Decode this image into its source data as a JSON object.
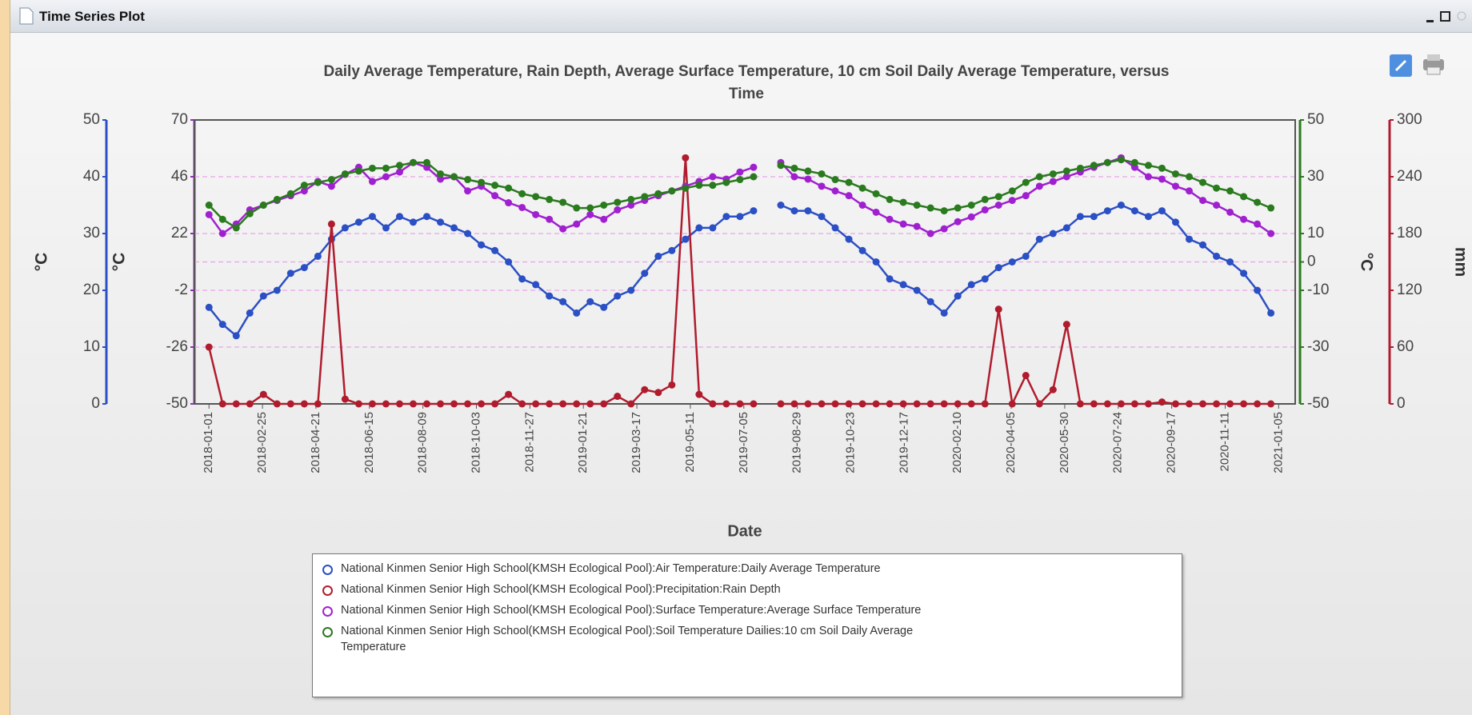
{
  "window": {
    "title": "Time Series Plot"
  },
  "chart_data": {
    "type": "line",
    "title": "Daily Average Temperature, Rain Depth, Average Surface Temperature, 10 cm Soil Daily Average Temperature, versus Time",
    "x_label": "Date",
    "xlim": [
      "2017-12-17",
      "2021-01-22"
    ],
    "xticks": [
      "2018-01-01",
      "2018-02-25",
      "2018-04-21",
      "2018-06-15",
      "2018-08-09",
      "2018-10-03",
      "2018-11-27",
      "2019-01-21",
      "2019-03-17",
      "2019-05-11",
      "2019-07-05",
      "2019-08-29",
      "2019-10-23",
      "2019-12-17",
      "2020-02-10",
      "2020-04-05",
      "2020-05-30",
      "2020-07-24",
      "2020-09-17",
      "2020-11-11",
      "2021-01-05"
    ],
    "axes": [
      {
        "id": "y",
        "side": "left-outer",
        "label": "°C",
        "color": "#2b4fc4",
        "lim": [
          0,
          50
        ],
        "ticks": [
          0,
          10,
          20,
          30,
          40,
          50
        ]
      },
      {
        "id": "y2",
        "side": "left-inner",
        "label": "°C",
        "color": "#a020d0",
        "lim": [
          -50,
          70
        ],
        "ticks": [
          -50,
          -26,
          -2,
          22,
          46,
          70
        ]
      },
      {
        "id": "y3",
        "side": "right-inner",
        "label": "°C",
        "color": "#2a7a1e",
        "lim": [
          -50,
          50
        ],
        "ticks": [
          -50,
          -30,
          -10,
          0,
          10,
          30,
          50
        ],
        "grid": true
      },
      {
        "id": "y4",
        "side": "right-outer",
        "label": "mm",
        "color": "#b01c2e",
        "lim": [
          0,
          300
        ],
        "ticks": [
          0,
          60,
          120,
          180,
          240,
          300
        ]
      }
    ],
    "x": [
      "2018-01-01",
      "2018-01-15",
      "2018-01-29",
      "2018-02-12",
      "2018-02-26",
      "2018-03-12",
      "2018-03-26",
      "2018-04-09",
      "2018-04-23",
      "2018-05-07",
      "2018-05-21",
      "2018-06-04",
      "2018-06-18",
      "2018-07-02",
      "2018-07-16",
      "2018-07-30",
      "2018-08-13",
      "2018-08-27",
      "2018-09-10",
      "2018-09-24",
      "2018-10-08",
      "2018-10-22",
      "2018-11-05",
      "2018-11-19",
      "2018-12-03",
      "2018-12-17",
      "2018-12-31",
      "2019-01-14",
      "2019-01-28",
      "2019-02-11",
      "2019-02-25",
      "2019-03-11",
      "2019-03-25",
      "2019-04-08",
      "2019-04-22",
      "2019-05-06",
      "2019-05-20",
      "2019-06-03",
      "2019-06-17",
      "2019-07-01",
      "2019-07-15",
      "2019-07-29",
      "2019-08-12",
      "2019-08-26",
      "2019-09-09",
      "2019-09-23",
      "2019-10-07",
      "2019-10-21",
      "2019-11-04",
      "2019-11-18",
      "2019-12-02",
      "2019-12-16",
      "2019-12-30",
      "2020-01-13",
      "2020-01-27",
      "2020-02-10",
      "2020-02-24",
      "2020-03-09",
      "2020-03-23",
      "2020-04-06",
      "2020-04-20",
      "2020-05-04",
      "2020-05-18",
      "2020-06-01",
      "2020-06-15",
      "2020-06-29",
      "2020-07-13",
      "2020-07-27",
      "2020-08-10",
      "2020-08-24",
      "2020-09-07",
      "2020-09-21",
      "2020-10-05",
      "2020-10-19",
      "2020-11-02",
      "2020-11-16",
      "2020-11-30",
      "2020-12-14",
      "2020-12-28"
    ],
    "series": [
      {
        "name": "National Kinmen Senior High School(KMSH Ecological Pool):Air Temperature:Daily Average Temperature",
        "color": "#2b4fc4",
        "axis": "y",
        "values": [
          17,
          14,
          12,
          16,
          19,
          20,
          23,
          24,
          26,
          29,
          31,
          32,
          33,
          31,
          33,
          32,
          33,
          32,
          31,
          30,
          28,
          27,
          25,
          22,
          21,
          19,
          18,
          16,
          18,
          17,
          19,
          20,
          23,
          26,
          27,
          29,
          31,
          31,
          33,
          33,
          34,
          null,
          35,
          34,
          34,
          33,
          31,
          29,
          27,
          25,
          22,
          21,
          20,
          18,
          16,
          19,
          21,
          22,
          24,
          25,
          26,
          29,
          30,
          31,
          33,
          33,
          34,
          35,
          34,
          33,
          34,
          32,
          29,
          28,
          26,
          25,
          23,
          20,
          16
        ]
      },
      {
        "name": "National Kinmen Senior High School(KMSH Ecological Pool):Precipitation:Rain Depth",
        "color": "#b01c2e",
        "axis": "y4",
        "values": [
          60,
          0,
          0,
          0,
          10,
          0,
          0,
          0,
          0,
          190,
          5,
          0,
          0,
          0,
          0,
          0,
          0,
          0,
          0,
          0,
          0,
          0,
          10,
          0,
          0,
          0,
          0,
          0,
          0,
          0,
          8,
          0,
          15,
          12,
          20,
          260,
          10,
          0,
          0,
          0,
          0,
          null,
          0,
          0,
          0,
          0,
          0,
          0,
          0,
          0,
          0,
          0,
          0,
          0,
          0,
          0,
          0,
          0,
          100,
          0,
          30,
          0,
          15,
          84,
          0,
          0,
          0,
          0,
          0,
          0,
          2,
          0,
          0,
          0,
          0,
          0,
          0,
          0,
          0
        ]
      },
      {
        "name": "National Kinmen Senior High School(KMSH Ecological Pool):Surface Temperature:Average Surface Temperature",
        "color": "#a020d0",
        "axis": "y2",
        "values": [
          30,
          22,
          26,
          32,
          34,
          36,
          38,
          40,
          44,
          42,
          47,
          50,
          44,
          46,
          48,
          52,
          50,
          45,
          46,
          40,
          42,
          38,
          35,
          33,
          30,
          28,
          24,
          26,
          30,
          28,
          32,
          34,
          36,
          38,
          40,
          42,
          44,
          46,
          45,
          48,
          50,
          null,
          52,
          46,
          45,
          42,
          40,
          38,
          34,
          31,
          28,
          26,
          25,
          22,
          24,
          27,
          29,
          32,
          34,
          36,
          38,
          42,
          44,
          46,
          48,
          50,
          52,
          54,
          50,
          46,
          45,
          42,
          40,
          36,
          34,
          31,
          28,
          26,
          22
        ]
      },
      {
        "name": "National Kinmen Senior High School(KMSH Ecological Pool):Soil Temperature Dailies:10 cm Soil Daily Average Temperature",
        "color": "#2a7a1e",
        "axis": "y3",
        "values": [
          20,
          15,
          12,
          17,
          20,
          22,
          24,
          27,
          28,
          29,
          31,
          32,
          33,
          33,
          34,
          35,
          35,
          31,
          30,
          29,
          28,
          27,
          26,
          24,
          23,
          22,
          21,
          19,
          19,
          20,
          21,
          22,
          23,
          24,
          25,
          26,
          27,
          27,
          28,
          29,
          30,
          null,
          34,
          33,
          32,
          31,
          29,
          28,
          26,
          24,
          22,
          21,
          20,
          19,
          18,
          19,
          20,
          22,
          23,
          25,
          28,
          30,
          31,
          32,
          33,
          34,
          35,
          36,
          35,
          34,
          33,
          31,
          30,
          28,
          26,
          25,
          23,
          21,
          19
        ]
      }
    ]
  }
}
